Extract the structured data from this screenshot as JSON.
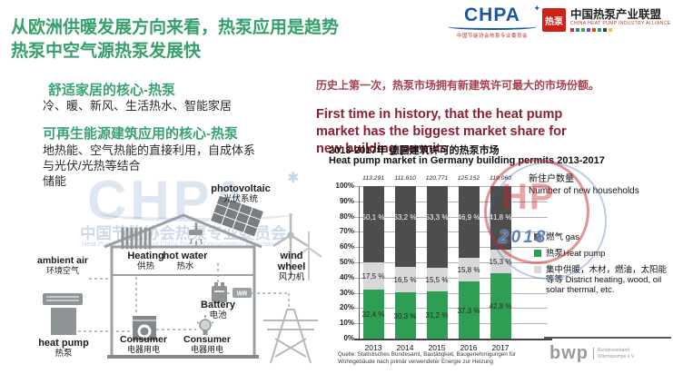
{
  "title": {
    "line1": "从欧洲供暖发展方向来看，热泵应用是趋势",
    "line2": "热泵中空气源热泵发展快"
  },
  "logos": {
    "chpa": {
      "acronym": "CHPA",
      "star": "✦",
      "caption": "中国节能协会热泵专业委员会"
    },
    "alliance": {
      "badge": "热泵",
      "name_cn": "中国热泵产业联盟",
      "name_en": "CHINA HEAT PUMP INDUSTRY ALLIANCE"
    },
    "bwp": {
      "acronym": "bwp",
      "caption": "Bundesverband Wärmepumpe e.V."
    }
  },
  "left_panel": {
    "block1": {
      "title": "舒适家居的核心-热泵",
      "body": "冷、暖、新风、生活热水、智能家居"
    },
    "block2": {
      "title": "可再生能源建筑应用的核心-热泵",
      "line1": "地热能、空气热能的直接利用，自成体系",
      "line2": "与光伏/光热等结合",
      "line3": "储能"
    }
  },
  "diagram": {
    "photovoltaic_en": "photovoltaic",
    "photovoltaic_cn": "光伏系统",
    "heating_en": "Heating",
    "heating_cn": "供热",
    "hot_water_en": "hot water",
    "hot_water_cn": "热水",
    "wind_wheel_en": "wind wheel",
    "wind_wheel_cn": "风力机",
    "ambient_air_en": "ambient air",
    "ambient_air_cn": "环境空气",
    "heat_pump_en": "heat pump",
    "heat_pump_cn": "热泵",
    "battery_en": "Battery",
    "battery_cn": "电池",
    "consumer1_en": "Consumer",
    "consumer1_cn": "电器用电",
    "consumer2_en": "Consumer",
    "consumer2_cn": "电器用电",
    "inverter": "WR"
  },
  "right_panel": {
    "highlight_cn": "历史上第一次，热泵市场拥有新建筑许可最大的市场份额。",
    "highlight_en": "First time in history, that the heat pump market has the biggest market share for new building permits",
    "chart_title_cn": "2013-2017年 德国建筑许可的热泵市场",
    "chart_title_en": "Heat pump market in Germany building permits 2013-2017",
    "source": "Quelle: Statistisches Bundesamt, Bautätigkeit, Baugenehmigungen für Wohngebäude nach primär verwendeter Energie zur Heizung"
  },
  "watermarks": {
    "chpa_text": "CHPA",
    "star": "✱",
    "committee_cn": "中国节能协会热泵专业委员会",
    "committee_en": "Heat Pump Committee of China Energy Conservation Association",
    "stamp_letters": "HP",
    "year": "2018"
  },
  "chart_data": {
    "type": "bar",
    "stacked": true,
    "title_cn": "2013-2017年 德国建筑许可的热泵市场",
    "title_en": "Heat pump market in Germany building permits 2013-2017",
    "categories": [
      "2013",
      "2014",
      "2015",
      "2016",
      "2017"
    ],
    "totals_above_bars": [
      "113.291",
      "111.610",
      "120.771",
      "125.152",
      "119.060"
    ],
    "series": [
      {
        "name": "热泵 Heat pump",
        "color": "#2e9e54",
        "text_color": "#33272a",
        "values": [
          32.4,
          30.3,
          31.2,
          37.3,
          42.8
        ],
        "labels": [
          "32,4 %",
          "30,3 %",
          "31,2 %",
          "37,3 %",
          "42,8 %"
        ]
      },
      {
        "name": "集中供暖、木材、燃油、太阳能等 District heating etc.",
        "color": "#d8d8d8",
        "text_color": "#1c1c1c",
        "values": [
          17.5,
          16.5,
          15.5,
          15.8,
          15.3
        ],
        "labels": [
          "17,5 %",
          "16,5 %",
          "15,5 %",
          "15,8 %",
          "15,3 %"
        ]
      },
      {
        "name": "燃气 gas",
        "color": "#4d4d4d",
        "text_color": "#ffffff",
        "values": [
          50.1,
          53.2,
          53.3,
          46.9,
          41.8
        ],
        "labels": [
          "50,1 %",
          "53,2 %",
          "53,3 %",
          "46,9 %",
          "41,8 %"
        ]
      }
    ],
    "ylim": [
      0,
      100
    ],
    "yticks": [
      0,
      10,
      20,
      30,
      40,
      50,
      60,
      70,
      80,
      90,
      100
    ],
    "ytick_labels": [
      "0%",
      "10%",
      "20%",
      "30%",
      "40%",
      "50%",
      "60%",
      "70%",
      "80%",
      "90%",
      "100%"
    ],
    "grid": true,
    "legend_position": "right",
    "legend_title_cn": "新住户数量",
    "legend_title_en": "Number of  new households",
    "legend": [
      {
        "color": "#4d4d4d",
        "label": "燃气 gas"
      },
      {
        "color": "#2e9e54",
        "label": "热泵Heat pump"
      },
      {
        "color": "#d8d8d8",
        "label": "集中供暖，木材，燃油，太阳能等等 District heating, wood, oil solar thermal, etc."
      }
    ]
  }
}
